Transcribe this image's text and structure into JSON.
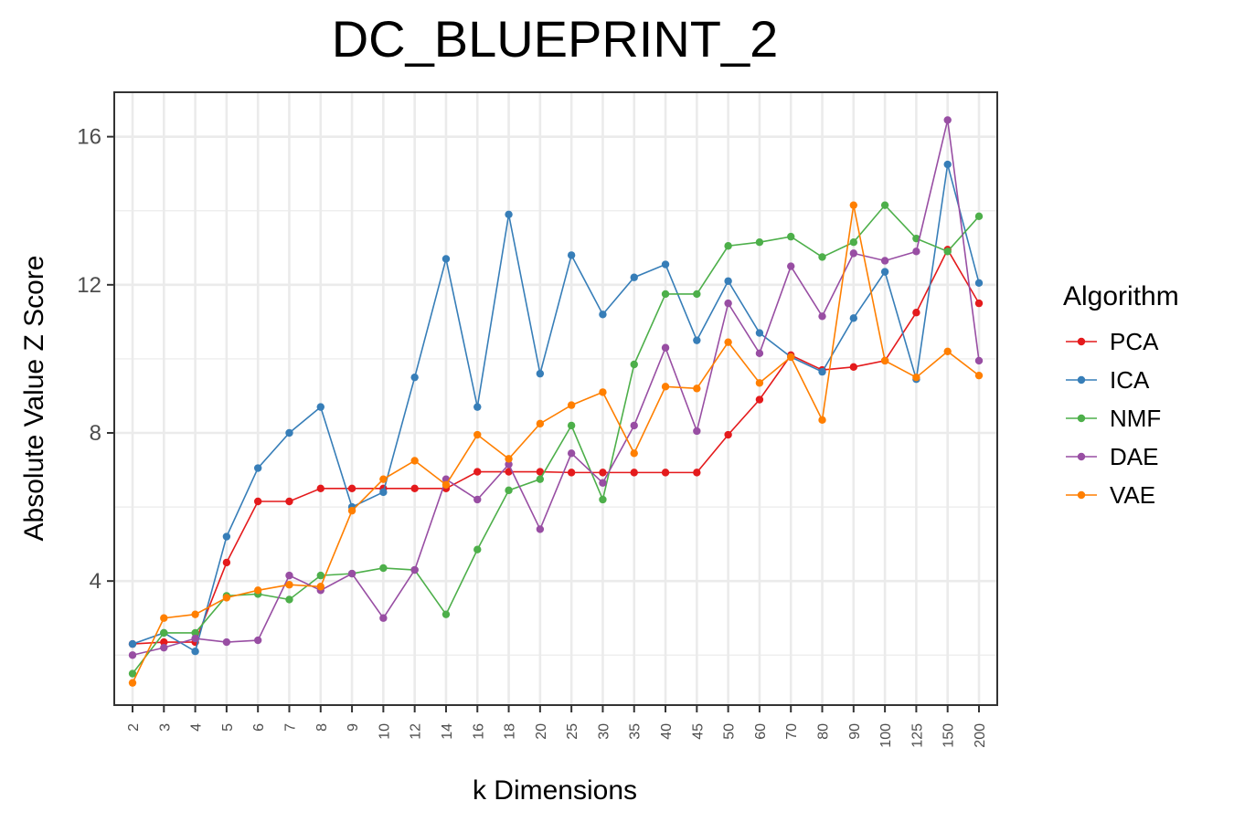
{
  "chart_data": {
    "type": "line",
    "title": "DC_BLUEPRINT_2",
    "xlabel": "k Dimensions",
    "ylabel": "Absolute Value Z Score",
    "categories": [
      "2",
      "3",
      "4",
      "5",
      "6",
      "7",
      "8",
      "9",
      "10",
      "12",
      "14",
      "16",
      "18",
      "20",
      "25",
      "30",
      "35",
      "40",
      "45",
      "50",
      "60",
      "70",
      "80",
      "90",
      "100",
      "125",
      "150",
      "200"
    ],
    "yticks": [
      4,
      8,
      12,
      16
    ],
    "ylim": [
      0.65,
      17.2
    ],
    "grid": true,
    "legend": {
      "title": "Algorithm",
      "position": "right"
    },
    "series": [
      {
        "name": "PCA",
        "color": "#e41a1c",
        "values": [
          2.3,
          2.35,
          2.35,
          4.5,
          6.15,
          6.15,
          6.5,
          6.5,
          6.5,
          6.5,
          6.5,
          6.95,
          6.95,
          6.95,
          6.93,
          6.93,
          6.93,
          6.93,
          6.93,
          7.95,
          8.9,
          10.1,
          9.7,
          9.78,
          9.95,
          11.25,
          12.95,
          11.5
        ]
      },
      {
        "name": "ICA",
        "color": "#377eb8",
        "values": [
          2.3,
          2.6,
          2.1,
          5.2,
          7.05,
          8.0,
          8.7,
          6.0,
          6.4,
          9.5,
          12.7,
          8.7,
          13.9,
          9.6,
          12.8,
          11.2,
          12.2,
          12.55,
          10.5,
          12.1,
          10.7,
          10.05,
          9.65,
          11.1,
          12.35,
          9.45,
          15.25,
          12.05
        ]
      },
      {
        "name": "NMF",
        "color": "#4daf4a",
        "values": [
          1.5,
          2.6,
          2.6,
          3.6,
          3.65,
          3.5,
          4.15,
          4.2,
          4.35,
          4.3,
          3.1,
          4.85,
          6.45,
          6.75,
          8.2,
          6.2,
          9.85,
          11.75,
          11.75,
          13.05,
          13.15,
          13.3,
          12.75,
          13.15,
          14.15,
          13.25,
          12.9,
          13.85
        ]
      },
      {
        "name": "DAE",
        "color": "#984ea3",
        "values": [
          2.0,
          2.2,
          2.45,
          2.35,
          2.4,
          4.15,
          3.75,
          4.2,
          3.0,
          4.3,
          6.75,
          6.2,
          7.15,
          5.4,
          7.45,
          6.65,
          8.2,
          10.3,
          8.05,
          11.5,
          10.15,
          12.5,
          11.15,
          12.85,
          12.65,
          12.9,
          16.45,
          9.95
        ]
      },
      {
        "name": "VAE",
        "color": "#ff7f00",
        "values": [
          1.25,
          3.0,
          3.1,
          3.55,
          3.75,
          3.9,
          3.85,
          5.9,
          6.75,
          7.25,
          6.6,
          7.95,
          7.3,
          8.25,
          8.75,
          9.1,
          7.45,
          9.25,
          9.2,
          10.45,
          9.35,
          10.05,
          8.35,
          14.15,
          9.95,
          9.5,
          10.2,
          9.55
        ]
      }
    ]
  }
}
